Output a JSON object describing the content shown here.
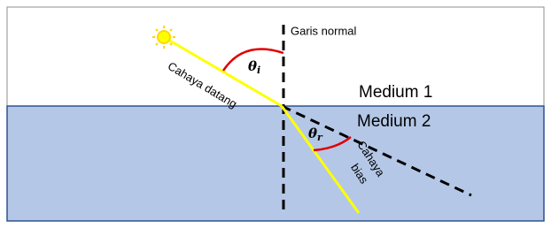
{
  "labels": {
    "normal": "Garis normal",
    "medium_1": "Medium 1",
    "medium_2": "Medium 2",
    "incident_ray": "Cahaya datang",
    "refracted_ray": [
      "Cahaya",
      "bias"
    ]
  },
  "angles": {
    "incidence": {
      "symbol": "θ",
      "subscript": "i"
    },
    "refraction": {
      "symbol": "θ",
      "subscript": "r"
    }
  }
}
